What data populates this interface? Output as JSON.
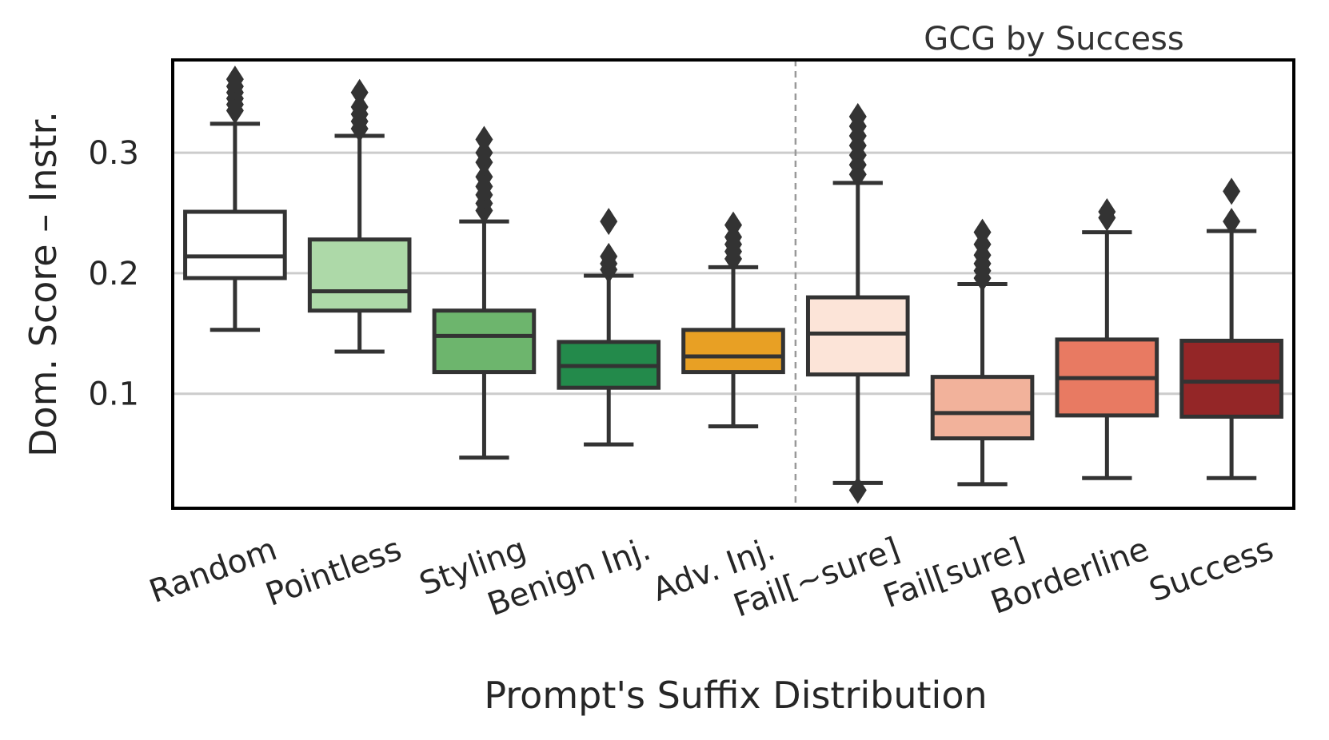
{
  "chart_data": {
    "type": "box",
    "title": "",
    "annotation": "GCG by Success",
    "xlabel": "Prompt's Suffix Distribution",
    "ylabel": "Dom. Score – Instr.",
    "ylim": [
      0.005,
      0.377
    ],
    "yticks": [
      "0.1",
      "0.2",
      "0.3"
    ],
    "ytick_values": [
      0.1,
      0.2,
      0.3
    ],
    "grid": "horizontal",
    "separator_after_index": 4,
    "categories": [
      "Random",
      "Pointless",
      "Styling",
      "Benign Inj.",
      "Adv. Inj.",
      "Fail[~sure]",
      "Fail[sure]",
      "Borderline",
      "Success"
    ],
    "boxes": [
      {
        "label": "Random",
        "whislo": 0.153,
        "q1": 0.196,
        "median": 0.214,
        "q3": 0.251,
        "whishi": 0.324,
        "color": "#ffffff",
        "fliers": [
          0.335,
          0.34,
          0.345,
          0.35,
          0.355,
          0.361
        ]
      },
      {
        "label": "Pointless",
        "whislo": 0.135,
        "q1": 0.169,
        "median": 0.185,
        "q3": 0.228,
        "whishi": 0.314,
        "color": "#add9a8",
        "fliers": [
          0.32,
          0.326,
          0.332,
          0.338,
          0.35
        ]
      },
      {
        "label": "Styling",
        "whislo": 0.047,
        "q1": 0.118,
        "median": 0.148,
        "q3": 0.169,
        "whishi": 0.243,
        "color": "#6db56d",
        "fliers": [
          0.252,
          0.258,
          0.265,
          0.272,
          0.28,
          0.292,
          0.3,
          0.311
        ]
      },
      {
        "label": "Benign Inj.",
        "whislo": 0.058,
        "q1": 0.105,
        "median": 0.123,
        "q3": 0.143,
        "whishi": 0.198,
        "color": "#238a4b",
        "fliers": [
          0.203,
          0.208,
          0.214,
          0.243
        ]
      },
      {
        "label": "Adv. Inj.",
        "whislo": 0.073,
        "q1": 0.118,
        "median": 0.131,
        "q3": 0.153,
        "whishi": 0.205,
        "color": "#e8a024",
        "fliers": [
          0.212,
          0.218,
          0.224,
          0.23,
          0.24
        ]
      },
      {
        "label": "Fail[~sure]",
        "whislo": 0.026,
        "q1": 0.116,
        "median": 0.15,
        "q3": 0.18,
        "whishi": 0.275,
        "color": "#fce4d8",
        "fliers": [
          0.02,
          0.282,
          0.29,
          0.298,
          0.306,
          0.314,
          0.322,
          0.33
        ]
      },
      {
        "label": "Fail[sure]",
        "whislo": 0.025,
        "q1": 0.063,
        "median": 0.084,
        "q3": 0.114,
        "whishi": 0.191,
        "color": "#f2b29b",
        "fliers": [
          0.196,
          0.202,
          0.208,
          0.215,
          0.224,
          0.234
        ]
      },
      {
        "label": "Borderline",
        "whislo": 0.03,
        "q1": 0.082,
        "median": 0.113,
        "q3": 0.145,
        "whishi": 0.234,
        "color": "#e87a62",
        "fliers": [
          0.246,
          0.251
        ]
      },
      {
        "label": "Success",
        "whislo": 0.03,
        "q1": 0.081,
        "median": 0.11,
        "q3": 0.144,
        "whishi": 0.235,
        "color": "#942627",
        "fliers": [
          0.243,
          0.268
        ]
      }
    ]
  }
}
